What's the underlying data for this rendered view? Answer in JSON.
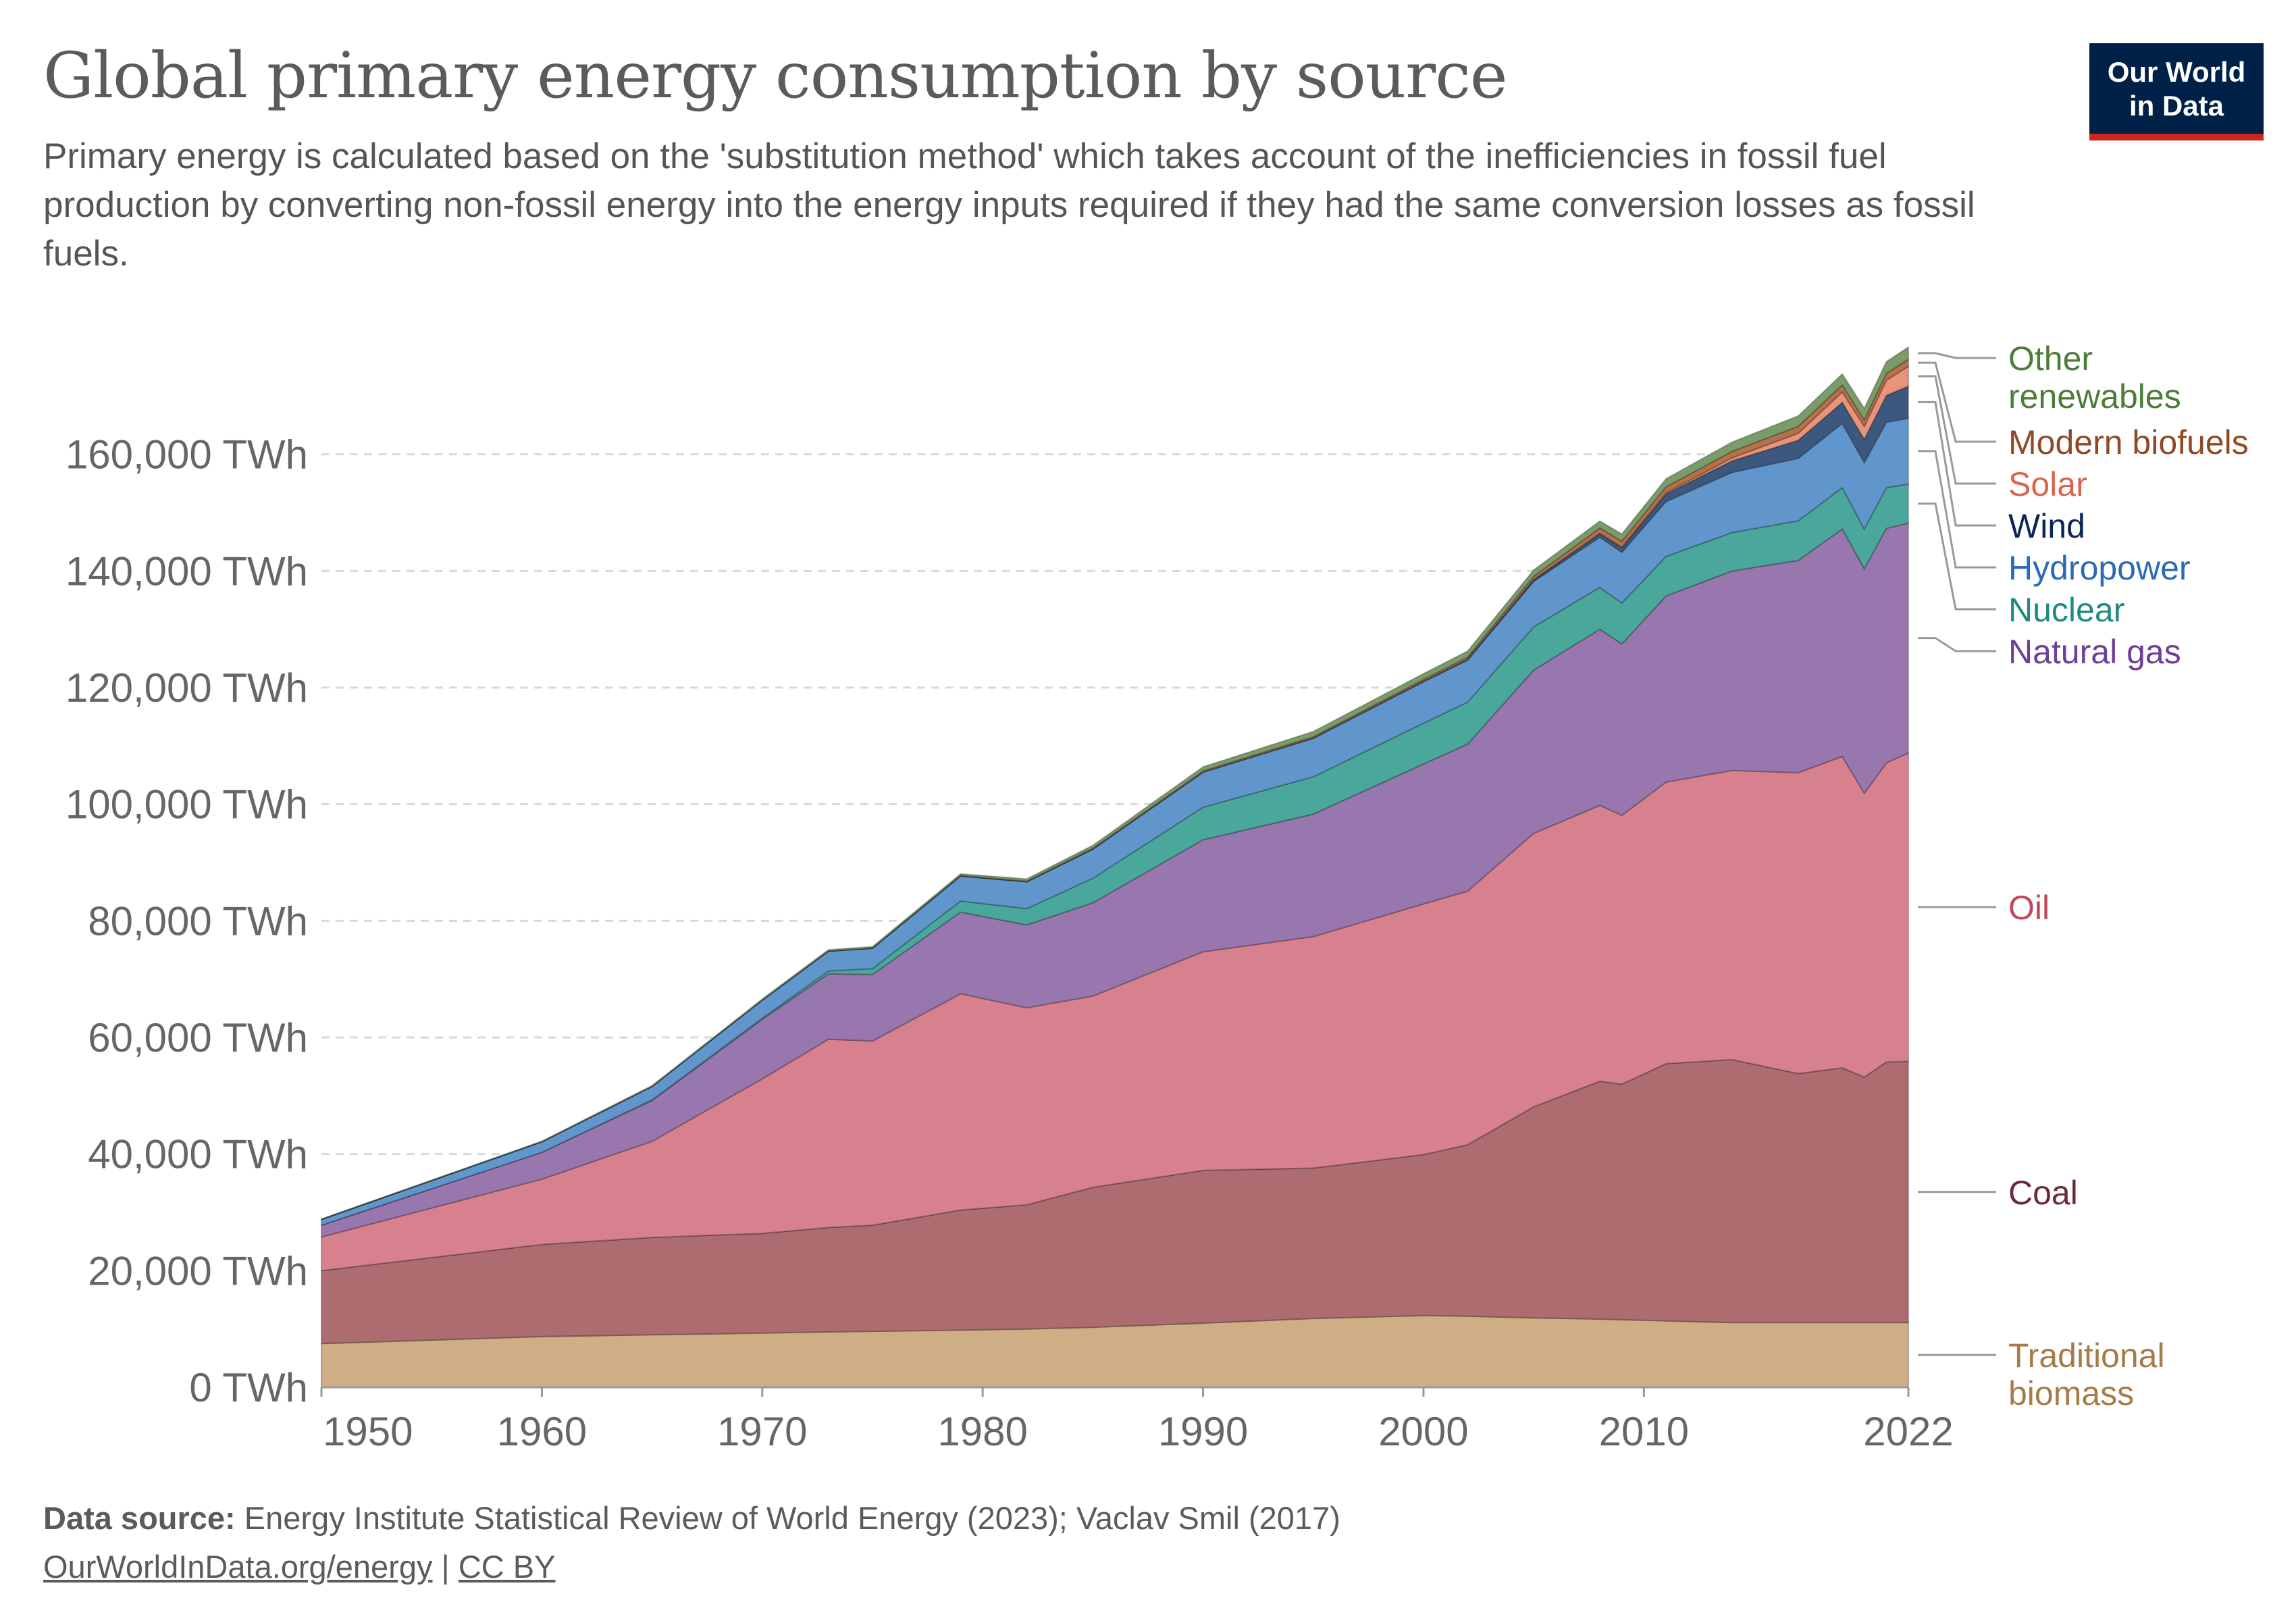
{
  "header": {
    "title": "Global primary energy consumption by source",
    "subtitle": "Primary energy is calculated based on the 'substitution method' which takes account of the inefficiencies in fossil fuel production by converting non-fossil energy into the energy inputs required if they had the same conversion losses as fossil fuels."
  },
  "logo": {
    "line1": "Our World",
    "line2": "in Data",
    "bg": "#002147",
    "bar": "#ce261e"
  },
  "footer": {
    "source_label": "Data source:",
    "source_text": "Energy Institute Statistical Review of World Energy (2023); Vaclav Smil (2017)",
    "link": "OurWorldInData.org/energy",
    "separator": "|",
    "license": "CC BY"
  },
  "chart_data": {
    "type": "area",
    "stacked": true,
    "x": [
      1950,
      1960,
      1965,
      1970,
      1973,
      1975,
      1979,
      1982,
      1985,
      1990,
      1995,
      2000,
      2002,
      2005,
      2008,
      2009,
      2011,
      2014,
      2017,
      2019,
      2020,
      2021,
      2022
    ],
    "x_ticks": [
      "1950",
      "1960",
      "1970",
      "1980",
      "1990",
      "2000",
      "2010",
      "2022"
    ],
    "x_tick_values": [
      1950,
      1960,
      1970,
      1980,
      1990,
      2000,
      2010,
      2022
    ],
    "y_ticks": [
      "0 TWh",
      "20,000 TWh",
      "40,000 TWh",
      "60,000 TWh",
      "80,000 TWh",
      "100,000 TWh",
      "120,000 TWh",
      "140,000 TWh",
      "160,000 TWh"
    ],
    "y_tick_values": [
      0,
      20000,
      40000,
      60000,
      80000,
      100000,
      120000,
      140000,
      160000
    ],
    "ylim": [
      0,
      180000
    ],
    "xlim": [
      1950,
      2022
    ],
    "grid": "horizontal dashed",
    "legend": "right, end labels",
    "series": [
      {
        "name": "Traditional biomass",
        "color": "#cfae86",
        "label_color": "#a67b48",
        "values": [
          7500,
          8700,
          9000,
          9300,
          9500,
          9600,
          9800,
          10000,
          10300,
          11000,
          11800,
          12300,
          12200,
          11900,
          11700,
          11600,
          11400,
          11100,
          11100,
          11100,
          11100,
          11100,
          11100
        ]
      },
      {
        "name": "Coal",
        "color": "#ac6c70",
        "label_color": "#6b2a36",
        "values": [
          12500,
          15800,
          16700,
          17100,
          17900,
          18200,
          20600,
          21300,
          24000,
          26200,
          25800,
          27600,
          29400,
          36200,
          40800,
          40400,
          44100,
          45100,
          42700,
          43700,
          42100,
          44700,
          44800
        ]
      },
      {
        "name": "Oil",
        "color": "#d6818d",
        "label_color": "#c0485b",
        "values": [
          5800,
          11200,
          16500,
          26500,
          32300,
          31600,
          37100,
          33800,
          32800,
          37500,
          39700,
          43000,
          43500,
          46900,
          47300,
          46100,
          48300,
          49600,
          51600,
          53400,
          48700,
          51300,
          52900
        ]
      },
      {
        "name": "Natural gas",
        "color": "#9777ae",
        "label_color": "#6f3e96",
        "values": [
          2000,
          4600,
          7000,
          10200,
          11200,
          11400,
          14000,
          14200,
          16000,
          19200,
          21000,
          24000,
          25200,
          28000,
          30200,
          29400,
          31900,
          34200,
          36400,
          39000,
          38500,
          40200,
          39400
        ]
      },
      {
        "name": "Nuclear",
        "color": "#4aa79b",
        "label_color": "#1e8b80",
        "values": [
          0,
          0,
          100,
          200,
          500,
          1000,
          1900,
          2800,
          4200,
          5600,
          6400,
          7000,
          7200,
          7400,
          7200,
          7000,
          6800,
          6600,
          6800,
          7100,
          6800,
          7000,
          6700
        ]
      },
      {
        "name": "Hydropower",
        "color": "#6196cd",
        "label_color": "#2a6ab6",
        "values": [
          1000,
          1800,
          2300,
          3100,
          3400,
          3500,
          4300,
          4600,
          5000,
          6000,
          6600,
          7100,
          7200,
          7800,
          8600,
          8700,
          9400,
          10300,
          10700,
          11000,
          11400,
          11200,
          11300
        ]
      },
      {
        "name": "Wind",
        "color": "#3c587e",
        "label_color": "#0a2456",
        "values": [
          0,
          0,
          0,
          0,
          0,
          0,
          0,
          0,
          0,
          10,
          20,
          80,
          150,
          300,
          600,
          800,
          1300,
          2000,
          3100,
          3600,
          4000,
          4600,
          5500
        ]
      },
      {
        "name": "Solar",
        "color": "#e8937a",
        "label_color": "#d8654c",
        "values": [
          0,
          0,
          0,
          0,
          0,
          0,
          0,
          0,
          0,
          0,
          0,
          5,
          10,
          20,
          60,
          100,
          200,
          500,
          1200,
          1800,
          2200,
          2600,
          3400
        ]
      },
      {
        "name": "Modern biofuels",
        "color": "#b5714a",
        "label_color": "#8f4924",
        "values": [
          0,
          0,
          0,
          0,
          0,
          0,
          50,
          100,
          150,
          200,
          250,
          300,
          350,
          550,
          900,
          1000,
          1000,
          1100,
          1200,
          1200,
          1100,
          1200,
          1200
        ]
      },
      {
        "name": "Other renewables",
        "color": "#7a9c6b",
        "label_color": "#4b7d39",
        "values": [
          50,
          100,
          150,
          200,
          250,
          280,
          300,
          400,
          500,
          700,
          900,
          1000,
          1050,
          1100,
          1200,
          1250,
          1400,
          1600,
          1800,
          1900,
          2000,
          2000,
          2100
        ]
      }
    ]
  }
}
